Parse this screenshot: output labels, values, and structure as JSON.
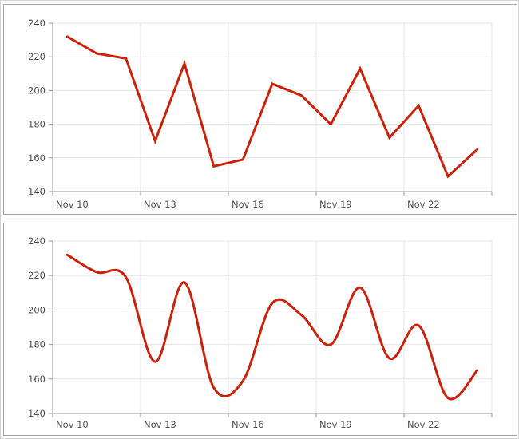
{
  "style": {
    "background": "#ffffff",
    "outer_frame_color": "#d4d4d4",
    "box_border_color": "#a2a2a2",
    "grid_color": "#e6e6e6",
    "axis_color": "#969696",
    "label_color": "#4f4f4f",
    "series_color": "#cc2109"
  },
  "chart_data": [
    {
      "type": "line",
      "title": "",
      "xlabel": "",
      "ylabel": "",
      "x": [
        "Nov 10",
        "Nov 11",
        "Nov 12",
        "Nov 13",
        "Nov 14",
        "Nov 15",
        "Nov 16",
        "Nov 17",
        "Nov 18",
        "Nov 19",
        "Nov 20",
        "Nov 21",
        "Nov 22",
        "Nov 23",
        "Nov 24"
      ],
      "values": [
        232,
        222,
        219,
        170,
        216,
        155,
        159,
        204,
        197,
        180,
        213,
        172,
        191,
        149,
        165
      ],
      "x_tick_labels": [
        "Nov 10",
        "Nov 13",
        "Nov 16",
        "Nov 19",
        "Nov 22"
      ],
      "x_tick_every": 3,
      "y_ticks": [
        140,
        160,
        180,
        200,
        220,
        240
      ],
      "ylim": [
        140,
        240
      ],
      "grid": true,
      "legend": "none",
      "line_color": "#cc2109",
      "smooth": false
    },
    {
      "type": "spline",
      "title": "",
      "xlabel": "",
      "ylabel": "",
      "x": [
        "Nov 10",
        "Nov 11",
        "Nov 12",
        "Nov 13",
        "Nov 14",
        "Nov 15",
        "Nov 16",
        "Nov 17",
        "Nov 18",
        "Nov 19",
        "Nov 20",
        "Nov 21",
        "Nov 22",
        "Nov 23",
        "Nov 24"
      ],
      "values": [
        232,
        222,
        219,
        170,
        216,
        155,
        159,
        204,
        197,
        180,
        213,
        172,
        191,
        149,
        165
      ],
      "x_tick_labels": [
        "Nov 10",
        "Nov 13",
        "Nov 16",
        "Nov 19",
        "Nov 22"
      ],
      "x_tick_every": 3,
      "y_ticks": [
        140,
        160,
        180,
        200,
        220,
        240
      ],
      "ylim": [
        140,
        240
      ],
      "grid": true,
      "legend": "none",
      "line_color": "#cc2109",
      "smooth": true
    }
  ]
}
